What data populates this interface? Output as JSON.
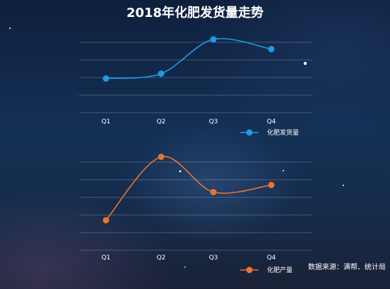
{
  "colors": {
    "series1": "#1f9ae6",
    "series2": "#e8742f",
    "text": "#ffffff"
  },
  "title": "2018年化肥发货量走势",
  "source": "数据来源：满帮、统计局",
  "chart_data": [
    {
      "type": "line",
      "categories": [
        "Q1",
        "Q2",
        "Q3",
        "Q4"
      ],
      "series": [
        {
          "name": "化肥发货量",
          "values": [
            28,
            32,
            60,
            52
          ]
        }
      ],
      "ylim": [
        0,
        72
      ],
      "y_axis_labels": false,
      "grid": true,
      "smooth": true,
      "legend_position": "bottom-right"
    },
    {
      "type": "line",
      "categories": [
        "Q1",
        "Q2",
        "Q3",
        "Q4"
      ],
      "series": [
        {
          "name": "化肥产量",
          "values": [
            17,
            53,
            33,
            37
          ]
        }
      ],
      "ylim": [
        0,
        60
      ],
      "y_axis_labels": false,
      "grid": true,
      "smooth": true,
      "legend_position": "bottom-right"
    }
  ]
}
